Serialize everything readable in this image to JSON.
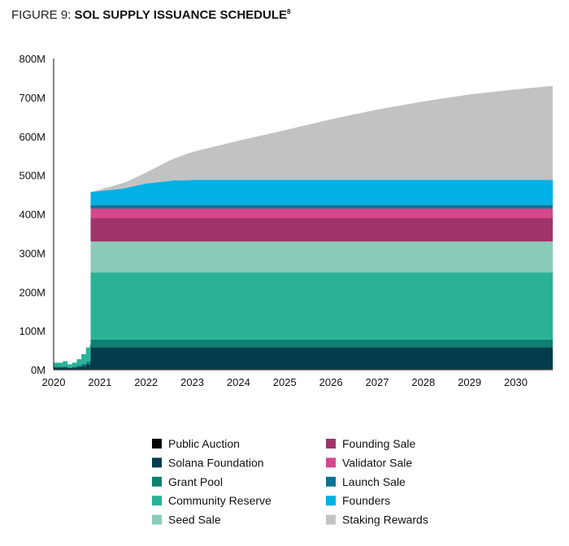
{
  "title": {
    "prefix": "FIGURE 9:",
    "main": "SOL SUPPLY ISSUANCE SCHEDULE",
    "footnote": "8"
  },
  "chart_data": {
    "type": "area",
    "stacked": true,
    "title": "SOL SUPPLY ISSUANCE SCHEDULE",
    "xlabel": "",
    "ylabel": "",
    "x_ticks": [
      "2020",
      "2021",
      "2022",
      "2023",
      "2024",
      "2025",
      "2026",
      "2027",
      "2028",
      "2029",
      "2030"
    ],
    "y_ticks": [
      "0M",
      "100M",
      "200M",
      "300M",
      "400M",
      "500M",
      "600M",
      "700M",
      "800M"
    ],
    "xlim": [
      2020,
      2030.8
    ],
    "ylim": [
      0,
      800
    ],
    "unit": "M SOL",
    "legend_position": "bottom",
    "fixed_allocations_full": [
      {
        "name": "Public Auction",
        "color": "#050505",
        "value": 1.6
      },
      {
        "name": "Solana Foundation",
        "color": "#033d4d",
        "value": 56
      },
      {
        "name": "Grant Pool",
        "color": "#0e7f72",
        "value": 20
      },
      {
        "name": "Community Reserve",
        "color": "#29b296",
        "value": 172
      },
      {
        "name": "Seed Sale",
        "color": "#88cbb9",
        "value": 80
      },
      {
        "name": "Founding Sale",
        "color": "#a0346a",
        "value": 60
      },
      {
        "name": "Validator Sale",
        "color": "#d5488c",
        "value": 25
      },
      {
        "name": "Launch Sale",
        "color": "#0e7294",
        "value": 9
      }
    ],
    "founders": {
      "name": "Founders",
      "color": "#00b1e6",
      "points": [
        [
          2020.8,
          33
        ],
        [
          2021.5,
          42
        ],
        [
          2022.0,
          55
        ],
        [
          2022.6,
          63
        ],
        [
          2023.0,
          64
        ],
        [
          2030.8,
          64
        ]
      ]
    },
    "staking_rewards": {
      "name": "Staking Rewards",
      "color": "#c2c2c2",
      "points": [
        [
          2020.8,
          0
        ],
        [
          2021.2,
          8
        ],
        [
          2021.6,
          16
        ],
        [
          2022.0,
          28
        ],
        [
          2022.5,
          52
        ],
        [
          2023.0,
          72
        ],
        [
          2024.0,
          101
        ],
        [
          2025.0,
          128
        ],
        [
          2026.0,
          156
        ],
        [
          2027.0,
          181
        ],
        [
          2028.0,
          202
        ],
        [
          2029.0,
          220
        ],
        [
          2030.0,
          233
        ],
        [
          2030.8,
          242
        ]
      ]
    },
    "early_unlock_2020": [
      {
        "x": 2020.0,
        "total": 18
      },
      {
        "x": 2020.2,
        "total": 22
      },
      {
        "x": 2020.3,
        "total": 14
      },
      {
        "x": 2020.4,
        "total": 18
      },
      {
        "x": 2020.5,
        "total": 27
      },
      {
        "x": 2020.6,
        "total": 40
      },
      {
        "x": 2020.7,
        "total": 57
      },
      {
        "x": 2020.78,
        "total": 64
      }
    ],
    "launch_x": 2020.8
  },
  "legend": [
    {
      "label": "Public Auction",
      "color": "#050505"
    },
    {
      "label": "Solana Foundation",
      "color": "#033d4d"
    },
    {
      "label": "Grant Pool",
      "color": "#0e7f72"
    },
    {
      "label": "Community Reserve",
      "color": "#29b296"
    },
    {
      "label": "Seed Sale",
      "color": "#88cbb9"
    },
    {
      "label": "Founding Sale",
      "color": "#a0346a"
    },
    {
      "label": "Validator Sale",
      "color": "#d5488c"
    },
    {
      "label": "Launch Sale",
      "color": "#0e7294"
    },
    {
      "label": "Founders",
      "color": "#00b1e6"
    },
    {
      "label": "Staking Rewards",
      "color": "#c2c2c2"
    }
  ]
}
